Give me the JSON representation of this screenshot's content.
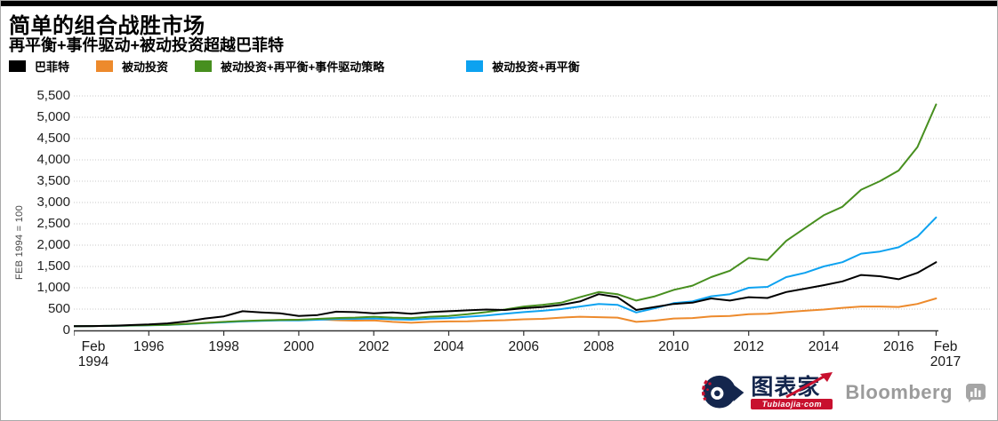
{
  "header": {
    "title": "简单的组合战胜市场",
    "subtitle": "再平衡+事件驱动+被动投资超越巴菲特"
  },
  "legend": {
    "items": [
      {
        "label": "巴菲特",
        "color": "#000000"
      },
      {
        "label": "被动投资",
        "color": "#ED8A2C"
      },
      {
        "label": "被动投资+再平衡+事件驱动策略",
        "color": "#478F1F"
      },
      {
        "label": "被动投资+再平衡",
        "color": "#0DA2F0"
      }
    ]
  },
  "chart_data": {
    "type": "line",
    "title": "简单的组合战胜市场",
    "subtitle": "再平衡+事件驱动+被动投资超越巴菲特",
    "ylabel": "FEB 1994 = 100",
    "xlabel": "",
    "ylim": [
      0,
      5500
    ],
    "y_tick_step": 500,
    "y_tick_labels": [
      "0",
      "500",
      "1,000",
      "1,500",
      "2,000",
      "2,500",
      "3,000",
      "3,500",
      "4,000",
      "4,500",
      "5,000",
      "5,500"
    ],
    "grid": "horizontal-dotted",
    "legend_position": "top-left",
    "x_range": [
      1994.1,
      2017.1
    ],
    "x_ticks": [
      {
        "x": 1994.1,
        "lines": [
          "Feb",
          "1994"
        ]
      },
      {
        "x": 1996.1,
        "lines": [
          "1996"
        ]
      },
      {
        "x": 1998.1,
        "lines": [
          "1998"
        ]
      },
      {
        "x": 2000.1,
        "lines": [
          "2000"
        ]
      },
      {
        "x": 2002.1,
        "lines": [
          "2002"
        ]
      },
      {
        "x": 2004.1,
        "lines": [
          "2004"
        ]
      },
      {
        "x": 2006.1,
        "lines": [
          "2006"
        ]
      },
      {
        "x": 2008.1,
        "lines": [
          "2008"
        ]
      },
      {
        "x": 2010.1,
        "lines": [
          "2010"
        ]
      },
      {
        "x": 2012.1,
        "lines": [
          "2012"
        ]
      },
      {
        "x": 2014.1,
        "lines": [
          "2014"
        ]
      },
      {
        "x": 2016.1,
        "lines": [
          "2016"
        ]
      },
      {
        "x": 2017.1,
        "lines": [
          "Feb",
          "2017"
        ]
      }
    ],
    "x": [
      1994.1,
      1994.6,
      1995.1,
      1995.6,
      1996.1,
      1996.6,
      1997.1,
      1997.6,
      1998.1,
      1998.6,
      1999.1,
      1999.6,
      2000.1,
      2000.6,
      2001.1,
      2001.6,
      2002.1,
      2002.6,
      2003.1,
      2003.6,
      2004.1,
      2004.6,
      2005.1,
      2005.6,
      2006.1,
      2006.6,
      2007.1,
      2007.6,
      2008.1,
      2008.6,
      2009.1,
      2009.6,
      2010.1,
      2010.6,
      2011.1,
      2011.6,
      2012.1,
      2012.6,
      2013.1,
      2013.6,
      2014.1,
      2014.6,
      2015.1,
      2015.6,
      2016.1,
      2016.6,
      2017.1
    ],
    "series": [
      {
        "name": "巴菲特",
        "color": "#000000",
        "values": [
          100,
          102,
          108,
          125,
          140,
          165,
          210,
          280,
          330,
          450,
          420,
          400,
          340,
          360,
          440,
          430,
          400,
          420,
          390,
          430,
          450,
          470,
          490,
          480,
          520,
          550,
          600,
          680,
          850,
          780,
          480,
          550,
          620,
          650,
          750,
          700,
          780,
          760,
          900,
          980,
          1060,
          1150,
          1300,
          1270,
          1200,
          1350,
          1600
        ]
      },
      {
        "name": "被动投资",
        "color": "#ED8A2C",
        "values": [
          100,
          102,
          105,
          115,
          125,
          135,
          155,
          180,
          195,
          215,
          230,
          245,
          250,
          260,
          240,
          230,
          235,
          200,
          180,
          200,
          210,
          215,
          230,
          240,
          260,
          270,
          300,
          320,
          310,
          300,
          200,
          230,
          280,
          290,
          330,
          340,
          380,
          390,
          430,
          460,
          490,
          530,
          560,
          560,
          550,
          620,
          750
        ]
      },
      {
        "name": "被动投资+再平衡+事件驱动策略",
        "color": "#478F1F",
        "values": [
          100,
          103,
          108,
          115,
          122,
          132,
          150,
          175,
          200,
          220,
          235,
          245,
          250,
          270,
          290,
          300,
          320,
          300,
          290,
          320,
          340,
          380,
          430,
          490,
          560,
          600,
          650,
          780,
          900,
          850,
          700,
          800,
          950,
          1050,
          1250,
          1400,
          1700,
          1650,
          2100,
          2400,
          2700,
          2900,
          3300,
          3500,
          3750,
          4300,
          5300
        ]
      },
      {
        "name": "被动投资+再平衡",
        "color": "#0DA2F0",
        "values": [
          100,
          102,
          106,
          112,
          118,
          128,
          145,
          170,
          190,
          210,
          225,
          235,
          235,
          250,
          265,
          270,
          280,
          260,
          250,
          275,
          290,
          320,
          350,
          390,
          430,
          460,
          500,
          560,
          620,
          600,
          420,
          520,
          640,
          680,
          800,
          850,
          1000,
          1020,
          1250,
          1350,
          1500,
          1600,
          1800,
          1850,
          1950,
          2200,
          2650
        ]
      }
    ]
  },
  "footer": {
    "tubiaojia": {
      "name": "图表家",
      "domain": "Tubiaojia·com"
    },
    "bloomberg": {
      "label": "Bloomberg"
    }
  }
}
